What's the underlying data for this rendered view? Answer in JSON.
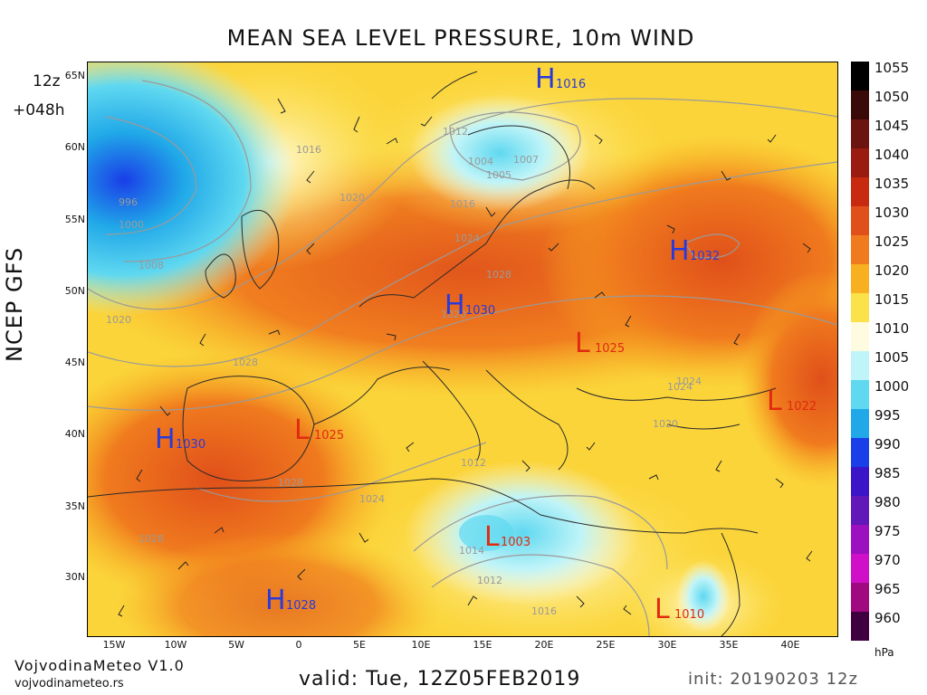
{
  "title": "MEAN SEA LEVEL PRESSURE, 10m WIND",
  "run": {
    "time": "12z",
    "lead": "+048h"
  },
  "model": "NCEP GFS",
  "footer": {
    "brand": "VojvodinaMeteo V1.0",
    "url": "vojvodinameteo.rs",
    "valid": "valid: Tue, 12Z05FEB2019",
    "init": "init: 20190203 12z"
  },
  "axes": {
    "lat_labels": [
      "65N",
      "60N",
      "55N",
      "50N",
      "45N",
      "40N",
      "35N",
      "30N"
    ],
    "lon_labels": [
      "15W",
      "10W",
      "5W",
      "0",
      "5E",
      "10E",
      "15E",
      "20E",
      "25E",
      "30E",
      "35E",
      "40E"
    ]
  },
  "colorbar": {
    "unit": "hPa",
    "levels": [
      "1055",
      "1050",
      "1045",
      "1040",
      "1035",
      "1030",
      "1025",
      "1020",
      "1015",
      "1010",
      "1005",
      "1000",
      "995",
      "990",
      "985",
      "980",
      "975",
      "970",
      "965",
      "960"
    ],
    "colors": [
      "#000000",
      "#3a0a08",
      "#6b1410",
      "#9a1c10",
      "#c82a10",
      "#e0501a",
      "#f07a1e",
      "#f8b020",
      "#fbe24a",
      "#fffbe0",
      "#bff4f8",
      "#5fd8f0",
      "#20a8e8",
      "#1a3ee8",
      "#3a16c8",
      "#6018b8",
      "#9c10c0",
      "#d010c8",
      "#a00a80",
      "#400040"
    ]
  },
  "pressure_centers": [
    {
      "type": "H",
      "value": "1016"
    },
    {
      "type": "H",
      "value": "1032"
    },
    {
      "type": "H",
      "value": "1030"
    },
    {
      "type": "L",
      "value": "1025"
    },
    {
      "type": "L",
      "value": "1022"
    },
    {
      "type": "H",
      "value": "1030"
    },
    {
      "type": "L",
      "value": "1025"
    },
    {
      "type": "L",
      "value": "1003"
    },
    {
      "type": "H",
      "value": "1028"
    },
    {
      "type": "L",
      "value": "1010"
    }
  ],
  "isobar_labels": [
    "1016",
    "1020",
    "1024",
    "1028",
    "1012",
    "1008",
    "1000",
    "996",
    "1004",
    "1007",
    "1005",
    "1024",
    "1020",
    "1016",
    "1012",
    "1028",
    "1024",
    "1020",
    "1028",
    "1024",
    "1028",
    "1014",
    "1012",
    "1016",
    "1020"
  ]
}
